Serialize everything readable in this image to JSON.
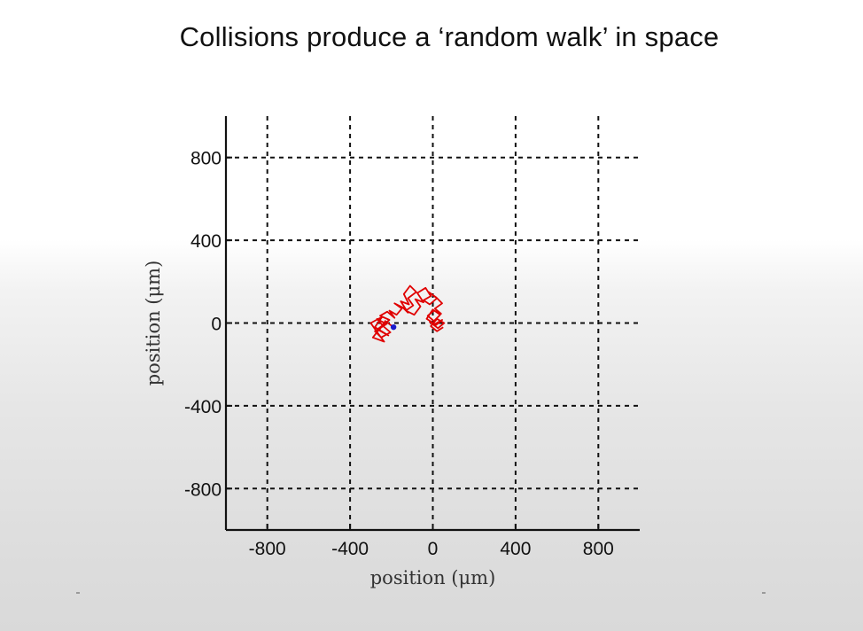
{
  "slide": {
    "title": "Collisions produce a ‘random walk’ in space"
  },
  "chart_data": {
    "type": "line",
    "title": "",
    "xlabel": "position (μm)",
    "ylabel": "position (μm)",
    "xlim": [
      -1000,
      1000
    ],
    "ylim": [
      -1000,
      1000
    ],
    "xticks": [
      -800,
      -400,
      0,
      400,
      800
    ],
    "yticks": [
      -800,
      -400,
      0,
      400,
      800
    ],
    "grid": true,
    "grid_style": "dashed",
    "series": [
      {
        "color": "#e00000",
        "x": [
          -190,
          -230,
          -260,
          -215,
          -280,
          -245,
          -300,
          -265,
          -235,
          -290,
          -255,
          -225,
          -270,
          -240,
          -205,
          -250,
          -280,
          -235,
          -210,
          -255,
          -220,
          -185,
          -210,
          -175,
          -150,
          -185,
          -145,
          -120,
          -155,
          -115,
          -140,
          -110,
          -80,
          -120,
          -95,
          -130,
          -90,
          -60,
          -85,
          -45,
          -75,
          -35,
          -10,
          -45,
          -15,
          20,
          -20,
          15,
          45,
          10,
          40,
          5,
          -25,
          5,
          35,
          0,
          -30,
          10,
          45,
          15,
          -15,
          25,
          55,
          20,
          -10,
          20,
          50
        ],
        "y": [
          -20,
          10,
          -35,
          -60,
          -20,
          30,
          0,
          -50,
          -90,
          -70,
          -25,
          -5,
          20,
          -15,
          -45,
          -70,
          -40,
          -5,
          15,
          35,
          55,
          25,
          60,
          40,
          70,
          95,
          75,
          50,
          105,
          90,
          140,
          180,
          150,
          120,
          85,
          60,
          40,
          80,
          115,
          100,
          145,
          170,
          130,
          110,
          90,
          120,
          150,
          125,
          95,
          70,
          45,
          60,
          35,
          10,
          40,
          65,
          20,
          -5,
          15,
          -10,
          5,
          -25,
          0,
          20,
          -15,
          -40,
          -20
        ]
      }
    ],
    "markers": [
      {
        "x": -190,
        "y": -20,
        "color": "#1a1acc"
      }
    ]
  }
}
